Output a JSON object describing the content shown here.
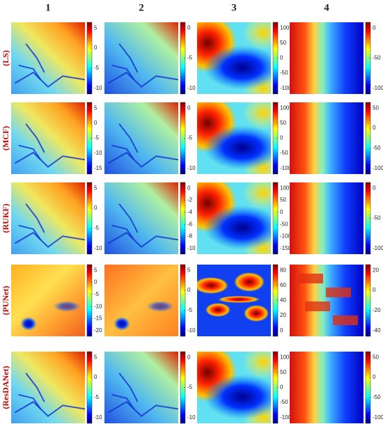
{
  "column_labels": [
    "1",
    "2",
    "3",
    "4"
  ],
  "rows": [
    {
      "label": "(LS)",
      "colorbars": [
        {
          "ticks": [
            5,
            0,
            -5,
            -10
          ]
        },
        {
          "ticks": [
            0,
            -5,
            -10
          ]
        },
        {
          "ticks": [
            100,
            50,
            0,
            -50,
            -100
          ]
        },
        {
          "ticks": [
            0,
            -50,
            -100
          ]
        }
      ]
    },
    {
      "label": "(MCF)",
      "colorbars": [
        {
          "ticks": [
            5,
            0,
            -5,
            -10,
            -15
          ]
        },
        {
          "ticks": [
            0,
            -5,
            -10
          ]
        },
        {
          "ticks": [
            100,
            50,
            0,
            -50,
            -100
          ]
        },
        {
          "ticks": [
            50,
            0,
            -50,
            -100
          ]
        }
      ]
    },
    {
      "label": "(RUKF)",
      "colorbars": [
        {
          "ticks": [
            5,
            0,
            -5,
            -10
          ]
        },
        {
          "ticks": [
            0,
            -2,
            -4,
            -6,
            -8,
            -10
          ]
        },
        {
          "ticks": [
            100,
            50,
            0,
            -50,
            -100,
            -150
          ]
        },
        {
          "ticks": [
            0,
            -50,
            -100
          ]
        }
      ]
    },
    {
      "label": "(PUNet)",
      "colorbars": [
        {
          "ticks": [
            5,
            0,
            -5,
            -10,
            -15,
            -20
          ]
        },
        {
          "ticks": [
            5,
            0,
            -5,
            -10
          ]
        },
        {
          "ticks": [
            80,
            60,
            40,
            20,
            0
          ]
        },
        {
          "ticks": [
            20,
            0,
            -20,
            -40
          ]
        }
      ]
    },
    {
      "label": "(ResDANet)",
      "colorbars": [
        {
          "ticks": [
            5,
            0,
            -5,
            -10
          ]
        },
        {
          "ticks": [
            0,
            -5,
            -10
          ]
        },
        {
          "ticks": [
            100,
            50,
            0,
            -50,
            -100
          ]
        },
        {
          "ticks": [
            50,
            0,
            -50,
            -100
          ]
        }
      ]
    }
  ]
}
